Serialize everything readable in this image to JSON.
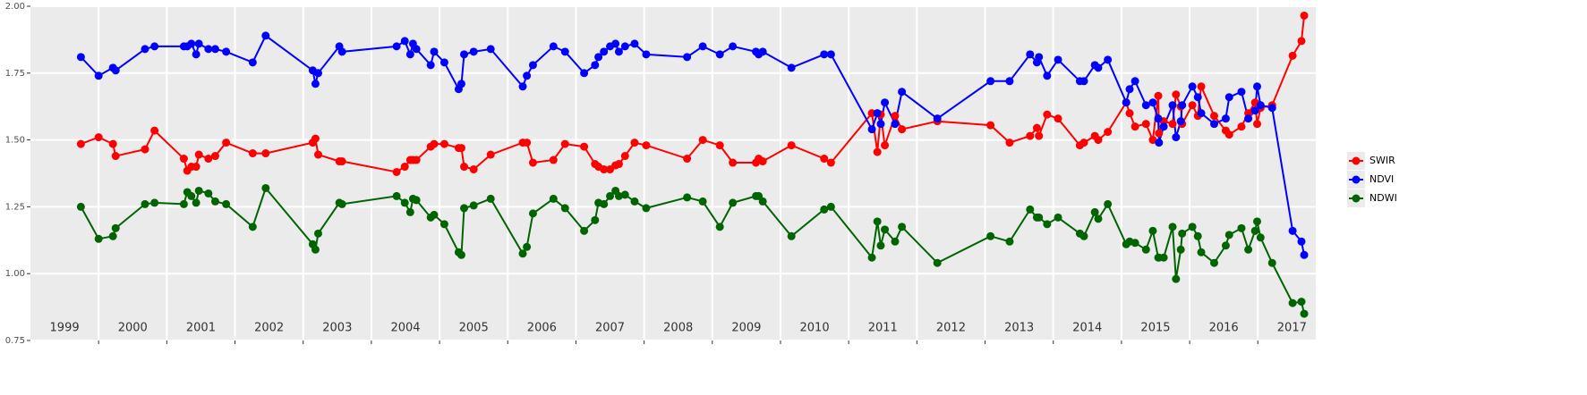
{
  "chart_data": {
    "type": "line",
    "xlim": [
      1999.0,
      2017.85
    ],
    "ylim": [
      0.75,
      2.0
    ],
    "yticks": [
      {
        "value": 0.75,
        "label": "0.75"
      },
      {
        "value": 1.0,
        "label": "1.00"
      },
      {
        "value": 1.25,
        "label": "1.25"
      },
      {
        "value": 1.5,
        "label": "1.50"
      },
      {
        "value": 1.75,
        "label": "1.75"
      },
      {
        "value": 2.0,
        "label": "2.00"
      }
    ],
    "xticks": [
      {
        "value": 1999.5,
        "label": "1999"
      },
      {
        "value": 2000.5,
        "label": "2000"
      },
      {
        "value": 2001.5,
        "label": "2001"
      },
      {
        "value": 2002.5,
        "label": "2002"
      },
      {
        "value": 2003.5,
        "label": "2003"
      },
      {
        "value": 2004.5,
        "label": "2004"
      },
      {
        "value": 2005.5,
        "label": "2005"
      },
      {
        "value": 2006.5,
        "label": "2006"
      },
      {
        "value": 2007.5,
        "label": "2007"
      },
      {
        "value": 2008.5,
        "label": "2008"
      },
      {
        "value": 2009.5,
        "label": "2009"
      },
      {
        "value": 2010.5,
        "label": "2010"
      },
      {
        "value": 2011.5,
        "label": "2011"
      },
      {
        "value": 2012.5,
        "label": "2012"
      },
      {
        "value": 2013.5,
        "label": "2013"
      },
      {
        "value": 2014.5,
        "label": "2014"
      },
      {
        "value": 2015.5,
        "label": "2015"
      },
      {
        "value": 2016.5,
        "label": "2016"
      },
      {
        "value": 2017.5,
        "label": "2017"
      }
    ],
    "x_gridlines": [
      2000,
      2001,
      2002,
      2003,
      2004,
      2005,
      2006,
      2007,
      2008,
      2009,
      2010,
      2011,
      2012,
      2013,
      2014,
      2015,
      2016,
      2017
    ],
    "grid": true,
    "legend": "right",
    "x": [
      1999.74,
      2000.0,
      2000.21,
      2000.25,
      2000.68,
      2000.82,
      2001.25,
      2001.3,
      2001.36,
      2001.43,
      2001.47,
      2001.61,
      2001.71,
      2001.87,
      2002.26,
      2002.45,
      2003.14,
      2003.18,
      2003.22,
      2003.53,
      2003.57,
      2004.37,
      2004.49,
      2004.57,
      2004.61,
      2004.66,
      2004.87,
      2004.92,
      2005.07,
      2005.28,
      2005.32,
      2005.36,
      2005.5,
      2005.75,
      2006.22,
      2006.28,
      2006.37,
      2006.67,
      2006.84,
      2007.12,
      2007.28,
      2007.33,
      2007.41,
      2007.5,
      2007.58,
      2007.63,
      2007.72,
      2007.86,
      2008.03,
      2008.63,
      2008.86,
      2009.11,
      2009.3,
      2009.64,
      2009.68,
      2009.74,
      2010.16,
      2010.64,
      2010.74,
      2011.34,
      2011.42,
      2011.47,
      2011.53,
      2011.68,
      2011.78,
      2012.3,
      2013.08,
      2013.36,
      2013.66,
      2013.76,
      2013.79,
      2013.91,
      2014.07,
      2014.39,
      2014.45,
      2014.61,
      2014.66,
      2014.8,
      2015.07,
      2015.12,
      2015.2,
      2015.36,
      2015.46,
      2015.54,
      2015.55,
      2015.62,
      2015.75,
      2015.8,
      2015.87,
      2015.89,
      2016.04,
      2016.12,
      2016.17,
      2016.36,
      2016.53,
      2016.58,
      2016.76,
      2016.86,
      2016.96,
      2016.99,
      2017.04,
      2017.21,
      2017.51,
      2017.64,
      2017.68
    ],
    "series": [
      {
        "name": "SWIR",
        "color": "#ff0000",
        "values": [
          1.485,
          1.51,
          1.485,
          1.44,
          1.465,
          1.535,
          1.43,
          1.385,
          1.4,
          1.4,
          1.445,
          1.43,
          1.44,
          1.49,
          1.45,
          1.45,
          1.49,
          1.505,
          1.445,
          1.42,
          1.42,
          1.38,
          1.4,
          1.425,
          1.425,
          1.425,
          1.475,
          1.485,
          1.485,
          1.47,
          1.47,
          1.4,
          1.39,
          1.445,
          1.49,
          1.49,
          1.415,
          1.425,
          1.485,
          1.475,
          1.41,
          1.4,
          1.39,
          1.39,
          1.405,
          1.41,
          1.44,
          1.49,
          1.48,
          1.43,
          1.5,
          1.48,
          1.415,
          1.415,
          1.43,
          1.42,
          1.48,
          1.43,
          1.415,
          1.6,
          1.455,
          1.595,
          1.48,
          1.59,
          1.54,
          1.57,
          1.555,
          1.49,
          1.515,
          1.545,
          1.515,
          1.595,
          1.58,
          1.48,
          1.49,
          1.515,
          1.5,
          1.53,
          1.64,
          1.6,
          1.55,
          1.56,
          1.5,
          1.665,
          1.525,
          1.57,
          1.56,
          1.67,
          1.625,
          1.56,
          1.63,
          1.59,
          1.7,
          1.59,
          1.535,
          1.52,
          1.55,
          1.6,
          1.64,
          1.56,
          1.62,
          1.63,
          1.815,
          1.87,
          1.965
        ]
      },
      {
        "name": "NDVI",
        "color": "#0000ff",
        "values": [
          1.81,
          1.74,
          1.77,
          1.76,
          1.84,
          1.85,
          1.85,
          1.85,
          1.86,
          1.82,
          1.86,
          1.84,
          1.84,
          1.83,
          1.79,
          1.89,
          1.76,
          1.71,
          1.75,
          1.85,
          1.83,
          1.85,
          1.87,
          1.82,
          1.86,
          1.84,
          1.78,
          1.83,
          1.79,
          1.69,
          1.71,
          1.82,
          1.83,
          1.84,
          1.7,
          1.74,
          1.78,
          1.85,
          1.83,
          1.75,
          1.78,
          1.81,
          1.83,
          1.85,
          1.86,
          1.83,
          1.85,
          1.86,
          1.82,
          1.81,
          1.85,
          1.82,
          1.85,
          1.83,
          1.82,
          1.83,
          1.77,
          1.82,
          1.82,
          1.54,
          1.6,
          1.56,
          1.64,
          1.56,
          1.68,
          1.58,
          1.72,
          1.72,
          1.82,
          1.79,
          1.81,
          1.74,
          1.8,
          1.72,
          1.72,
          1.78,
          1.77,
          1.8,
          1.64,
          1.69,
          1.72,
          1.63,
          1.64,
          1.58,
          1.49,
          1.55,
          1.63,
          1.51,
          1.57,
          1.63,
          1.7,
          1.66,
          1.6,
          1.56,
          1.58,
          1.66,
          1.68,
          1.58,
          1.61,
          1.7,
          1.63,
          1.62,
          1.16,
          1.12,
          1.07
        ]
      },
      {
        "name": "NDWI",
        "color": "#006400",
        "values": [
          1.25,
          1.13,
          1.14,
          1.17,
          1.26,
          1.265,
          1.26,
          1.305,
          1.29,
          1.265,
          1.31,
          1.3,
          1.27,
          1.26,
          1.175,
          1.32,
          1.11,
          1.09,
          1.15,
          1.265,
          1.26,
          1.29,
          1.265,
          1.23,
          1.28,
          1.275,
          1.21,
          1.22,
          1.185,
          1.08,
          1.07,
          1.245,
          1.255,
          1.28,
          1.075,
          1.1,
          1.225,
          1.28,
          1.245,
          1.16,
          1.2,
          1.265,
          1.26,
          1.29,
          1.31,
          1.29,
          1.295,
          1.27,
          1.245,
          1.285,
          1.27,
          1.175,
          1.265,
          1.29,
          1.29,
          1.27,
          1.14,
          1.24,
          1.25,
          1.06,
          1.195,
          1.105,
          1.165,
          1.12,
          1.175,
          1.04,
          1.14,
          1.12,
          1.24,
          1.21,
          1.21,
          1.185,
          1.21,
          1.15,
          1.14,
          1.23,
          1.205,
          1.26,
          1.11,
          1.12,
          1.115,
          1.09,
          1.16,
          1.06,
          1.06,
          1.06,
          1.175,
          0.98,
          1.09,
          1.15,
          1.175,
          1.14,
          1.08,
          1.04,
          1.105,
          1.145,
          1.17,
          1.09,
          1.16,
          1.195,
          1.135,
          1.04,
          0.89,
          0.895,
          0.85
        ]
      }
    ]
  }
}
